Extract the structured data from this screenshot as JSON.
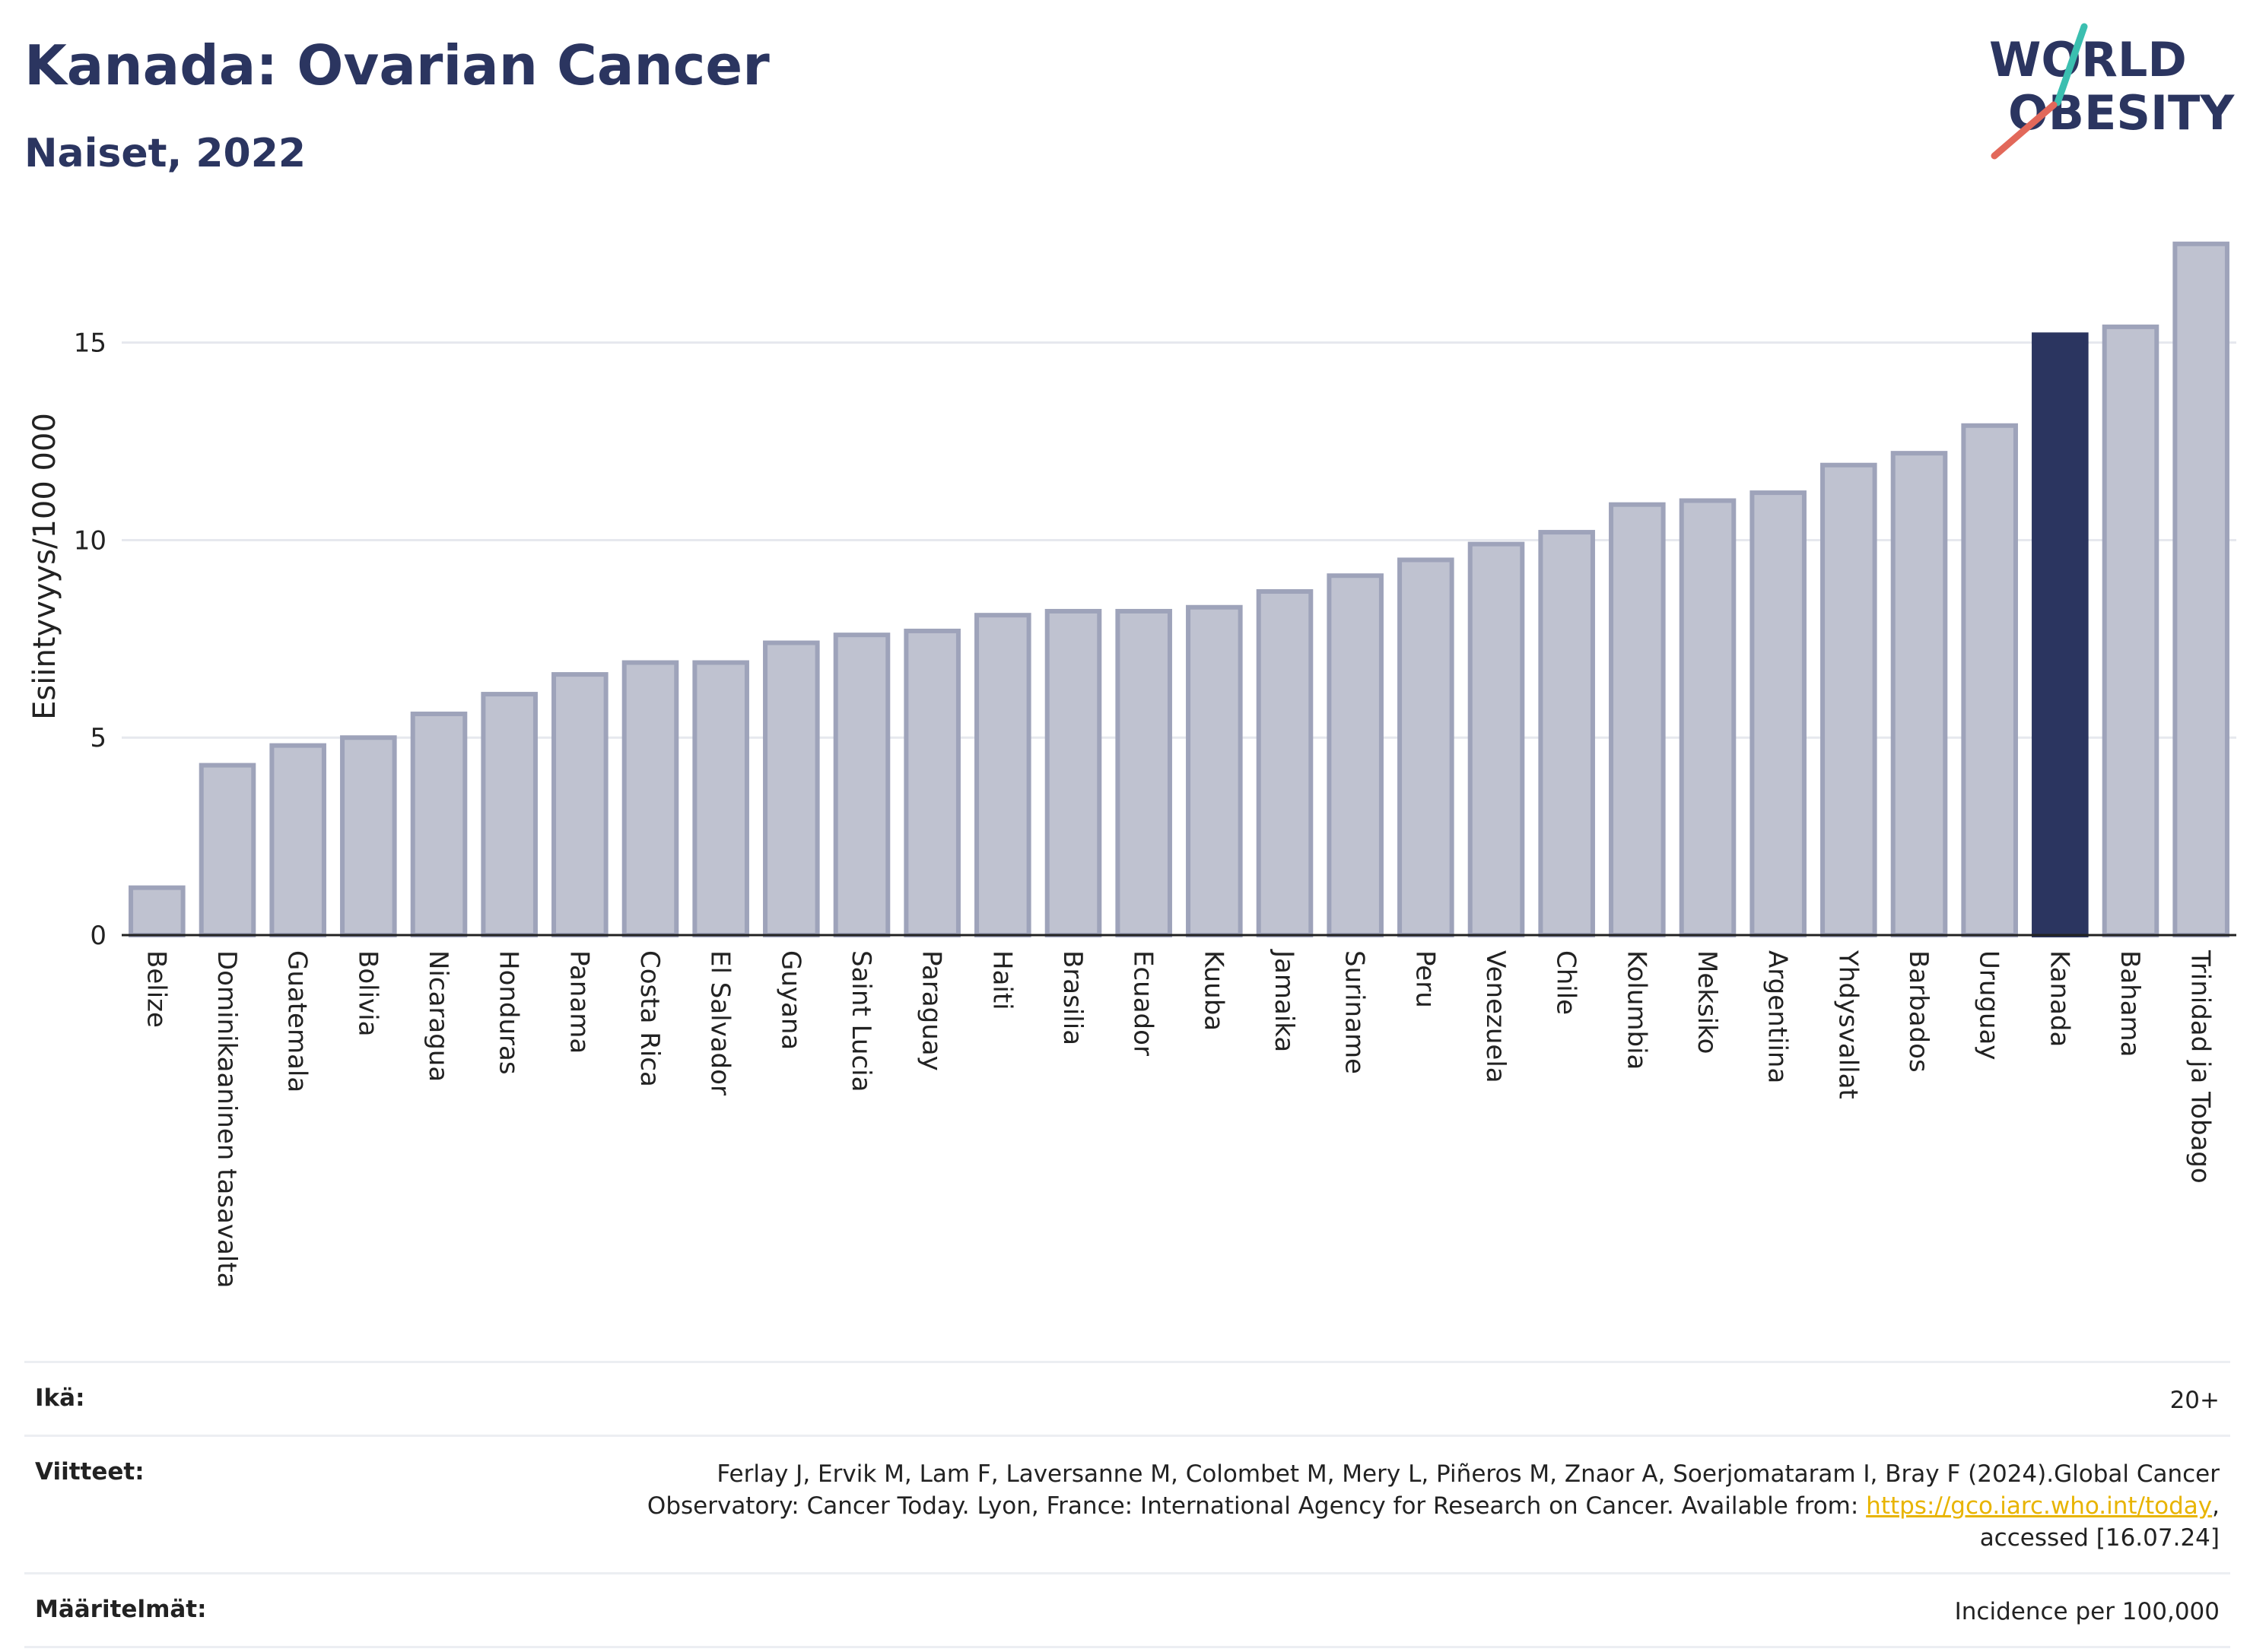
{
  "header": {
    "title": "Kanada: Ovarian Cancer",
    "subtitle": "Naiset, 2022"
  },
  "logo": {
    "line1": "WORLD",
    "line2": "OBESITY",
    "slash_colors": [
      "#3bbfb0",
      "#e2685a"
    ]
  },
  "colors": {
    "bar_default": "#bfc2d0",
    "bar_border": "#9ea3ba",
    "bar_highlight": "#2b3560",
    "title": "#2b3560"
  },
  "chart_data": {
    "type": "bar",
    "ylabel": "Esiintyvyys/100 000",
    "ylim": [
      0,
      17.9
    ],
    "yticks": [
      0,
      5,
      10,
      15
    ],
    "grid": true,
    "highlight": "Kanada",
    "categories": [
      "Belize",
      "Dominikaaninen tasavalta",
      "Guatemala",
      "Bolivia",
      "Nicaragua",
      "Honduras",
      "Panama",
      "Costa Rica",
      "El Salvador",
      "Guyana",
      "Saint Lucia",
      "Paraguay",
      "Haiti",
      "Brasilia",
      "Ecuador",
      "Kuuba",
      "Jamaika",
      "Suriname",
      "Peru",
      "Venezuela",
      "Chile",
      "Kolumbia",
      "Meksiko",
      "Argentiina",
      "Yhdysvallat",
      "Barbados",
      "Uruguay",
      "Kanada",
      "Bahama",
      "Trinidad ja Tobago"
    ],
    "values": [
      1.2,
      4.3,
      4.8,
      5.0,
      5.6,
      6.1,
      6.6,
      6.9,
      6.9,
      7.4,
      7.6,
      7.7,
      8.1,
      8.2,
      8.2,
      8.3,
      8.7,
      9.1,
      9.5,
      9.9,
      10.2,
      10.9,
      11.0,
      11.2,
      11.9,
      12.2,
      12.9,
      15.2,
      15.4,
      17.5
    ]
  },
  "footer": {
    "age_label": "Ikä:",
    "age_value": "20+",
    "refs_label": "Viitteet:",
    "refs_line1": "Ferlay J, Ervik M, Lam F, Laversanne M, Colombet M, Mery L, Piñeros M, Znaor A, Soerjomataram I, Bray F (2024).Global Cancer",
    "refs_line2_pre": "Observatory: Cancer Today. Lyon, France: International Agency for Research on Cancer. Available from: ",
    "refs_link": "https://gco.iarc.who.int/today",
    "refs_line2_post": ",",
    "refs_line3": "accessed [16.07.24]",
    "def_label": "Määritelmät:",
    "def_value": "Incidence per 100,000"
  }
}
